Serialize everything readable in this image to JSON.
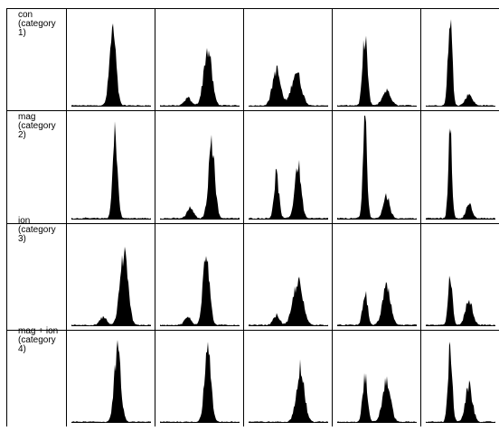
{
  "chart_data": {
    "type": "histogram-grid",
    "rows": [
      {
        "label": "con\n(category\n1)",
        "histograms": [
          {
            "peaks": [
              {
                "center": 0.52,
                "width": 0.04,
                "height": 0.8
              }
            ]
          },
          {
            "peaks": [
              {
                "center": 0.6,
                "width": 0.05,
                "height": 0.6
              },
              {
                "center": 0.35,
                "width": 0.04,
                "height": 0.08
              }
            ]
          },
          {
            "peaks": [
              {
                "center": 0.35,
                "width": 0.05,
                "height": 0.38
              },
              {
                "center": 0.6,
                "width": 0.06,
                "height": 0.36
              }
            ]
          },
          {
            "peaks": [
              {
                "center": 0.35,
                "width": 0.03,
                "height": 0.75
              },
              {
                "center": 0.62,
                "width": 0.05,
                "height": 0.16
              }
            ]
          },
          {
            "peaks": [
              {
                "center": 0.35,
                "width": 0.03,
                "height": 0.95
              },
              {
                "center": 0.62,
                "width": 0.05,
                "height": 0.12
              }
            ]
          }
        ]
      },
      {
        "label": "mag\n(category\n2)",
        "histograms": [
          {
            "peaks": [
              {
                "center": 0.55,
                "width": 0.03,
                "height": 0.82
              }
            ]
          },
          {
            "peaks": [
              {
                "center": 0.65,
                "width": 0.04,
                "height": 0.72
              },
              {
                "center": 0.38,
                "width": 0.04,
                "height": 0.1
              }
            ]
          },
          {
            "peaks": [
              {
                "center": 0.35,
                "width": 0.03,
                "height": 0.42
              },
              {
                "center": 0.62,
                "width": 0.04,
                "height": 0.52
              }
            ]
          },
          {
            "peaks": [
              {
                "center": 0.35,
                "width": 0.025,
                "height": 0.96
              },
              {
                "center": 0.62,
                "width": 0.04,
                "height": 0.22
              }
            ]
          },
          {
            "peaks": [
              {
                "center": 0.35,
                "width": 0.025,
                "height": 0.9
              },
              {
                "center": 0.62,
                "width": 0.04,
                "height": 0.14
              }
            ]
          }
        ]
      },
      {
        "label": "ion\n(category\n3)",
        "histograms": [
          {
            "peaks": [
              {
                "center": 0.66,
                "width": 0.05,
                "height": 0.72
              },
              {
                "center": 0.4,
                "width": 0.04,
                "height": 0.08
              }
            ]
          },
          {
            "peaks": [
              {
                "center": 0.58,
                "width": 0.04,
                "height": 0.78
              },
              {
                "center": 0.35,
                "width": 0.04,
                "height": 0.08
              }
            ]
          },
          {
            "peaks": [
              {
                "center": 0.62,
                "width": 0.06,
                "height": 0.44
              },
              {
                "center": 0.35,
                "width": 0.04,
                "height": 0.1
              }
            ]
          },
          {
            "peaks": [
              {
                "center": 0.35,
                "width": 0.03,
                "height": 0.34
              },
              {
                "center": 0.62,
                "width": 0.05,
                "height": 0.38
              }
            ]
          },
          {
            "peaks": [
              {
                "center": 0.35,
                "width": 0.03,
                "height": 0.52
              },
              {
                "center": 0.62,
                "width": 0.05,
                "height": 0.25
              }
            ]
          }
        ]
      },
      {
        "label": "mag + ion\n(category\n4)",
        "histograms": [
          {
            "peaks": [
              {
                "center": 0.58,
                "width": 0.04,
                "height": 0.82
              }
            ]
          },
          {
            "peaks": [
              {
                "center": 0.6,
                "width": 0.04,
                "height": 0.8
              }
            ]
          },
          {
            "peaks": [
              {
                "center": 0.65,
                "width": 0.05,
                "height": 0.6
              }
            ]
          },
          {
            "peaks": [
              {
                "center": 0.35,
                "width": 0.03,
                "height": 0.52
              },
              {
                "center": 0.62,
                "width": 0.05,
                "height": 0.46
              }
            ]
          },
          {
            "peaks": [
              {
                "center": 0.35,
                "width": 0.03,
                "height": 0.85
              },
              {
                "center": 0.62,
                "width": 0.05,
                "height": 0.4
              }
            ]
          }
        ]
      }
    ]
  }
}
